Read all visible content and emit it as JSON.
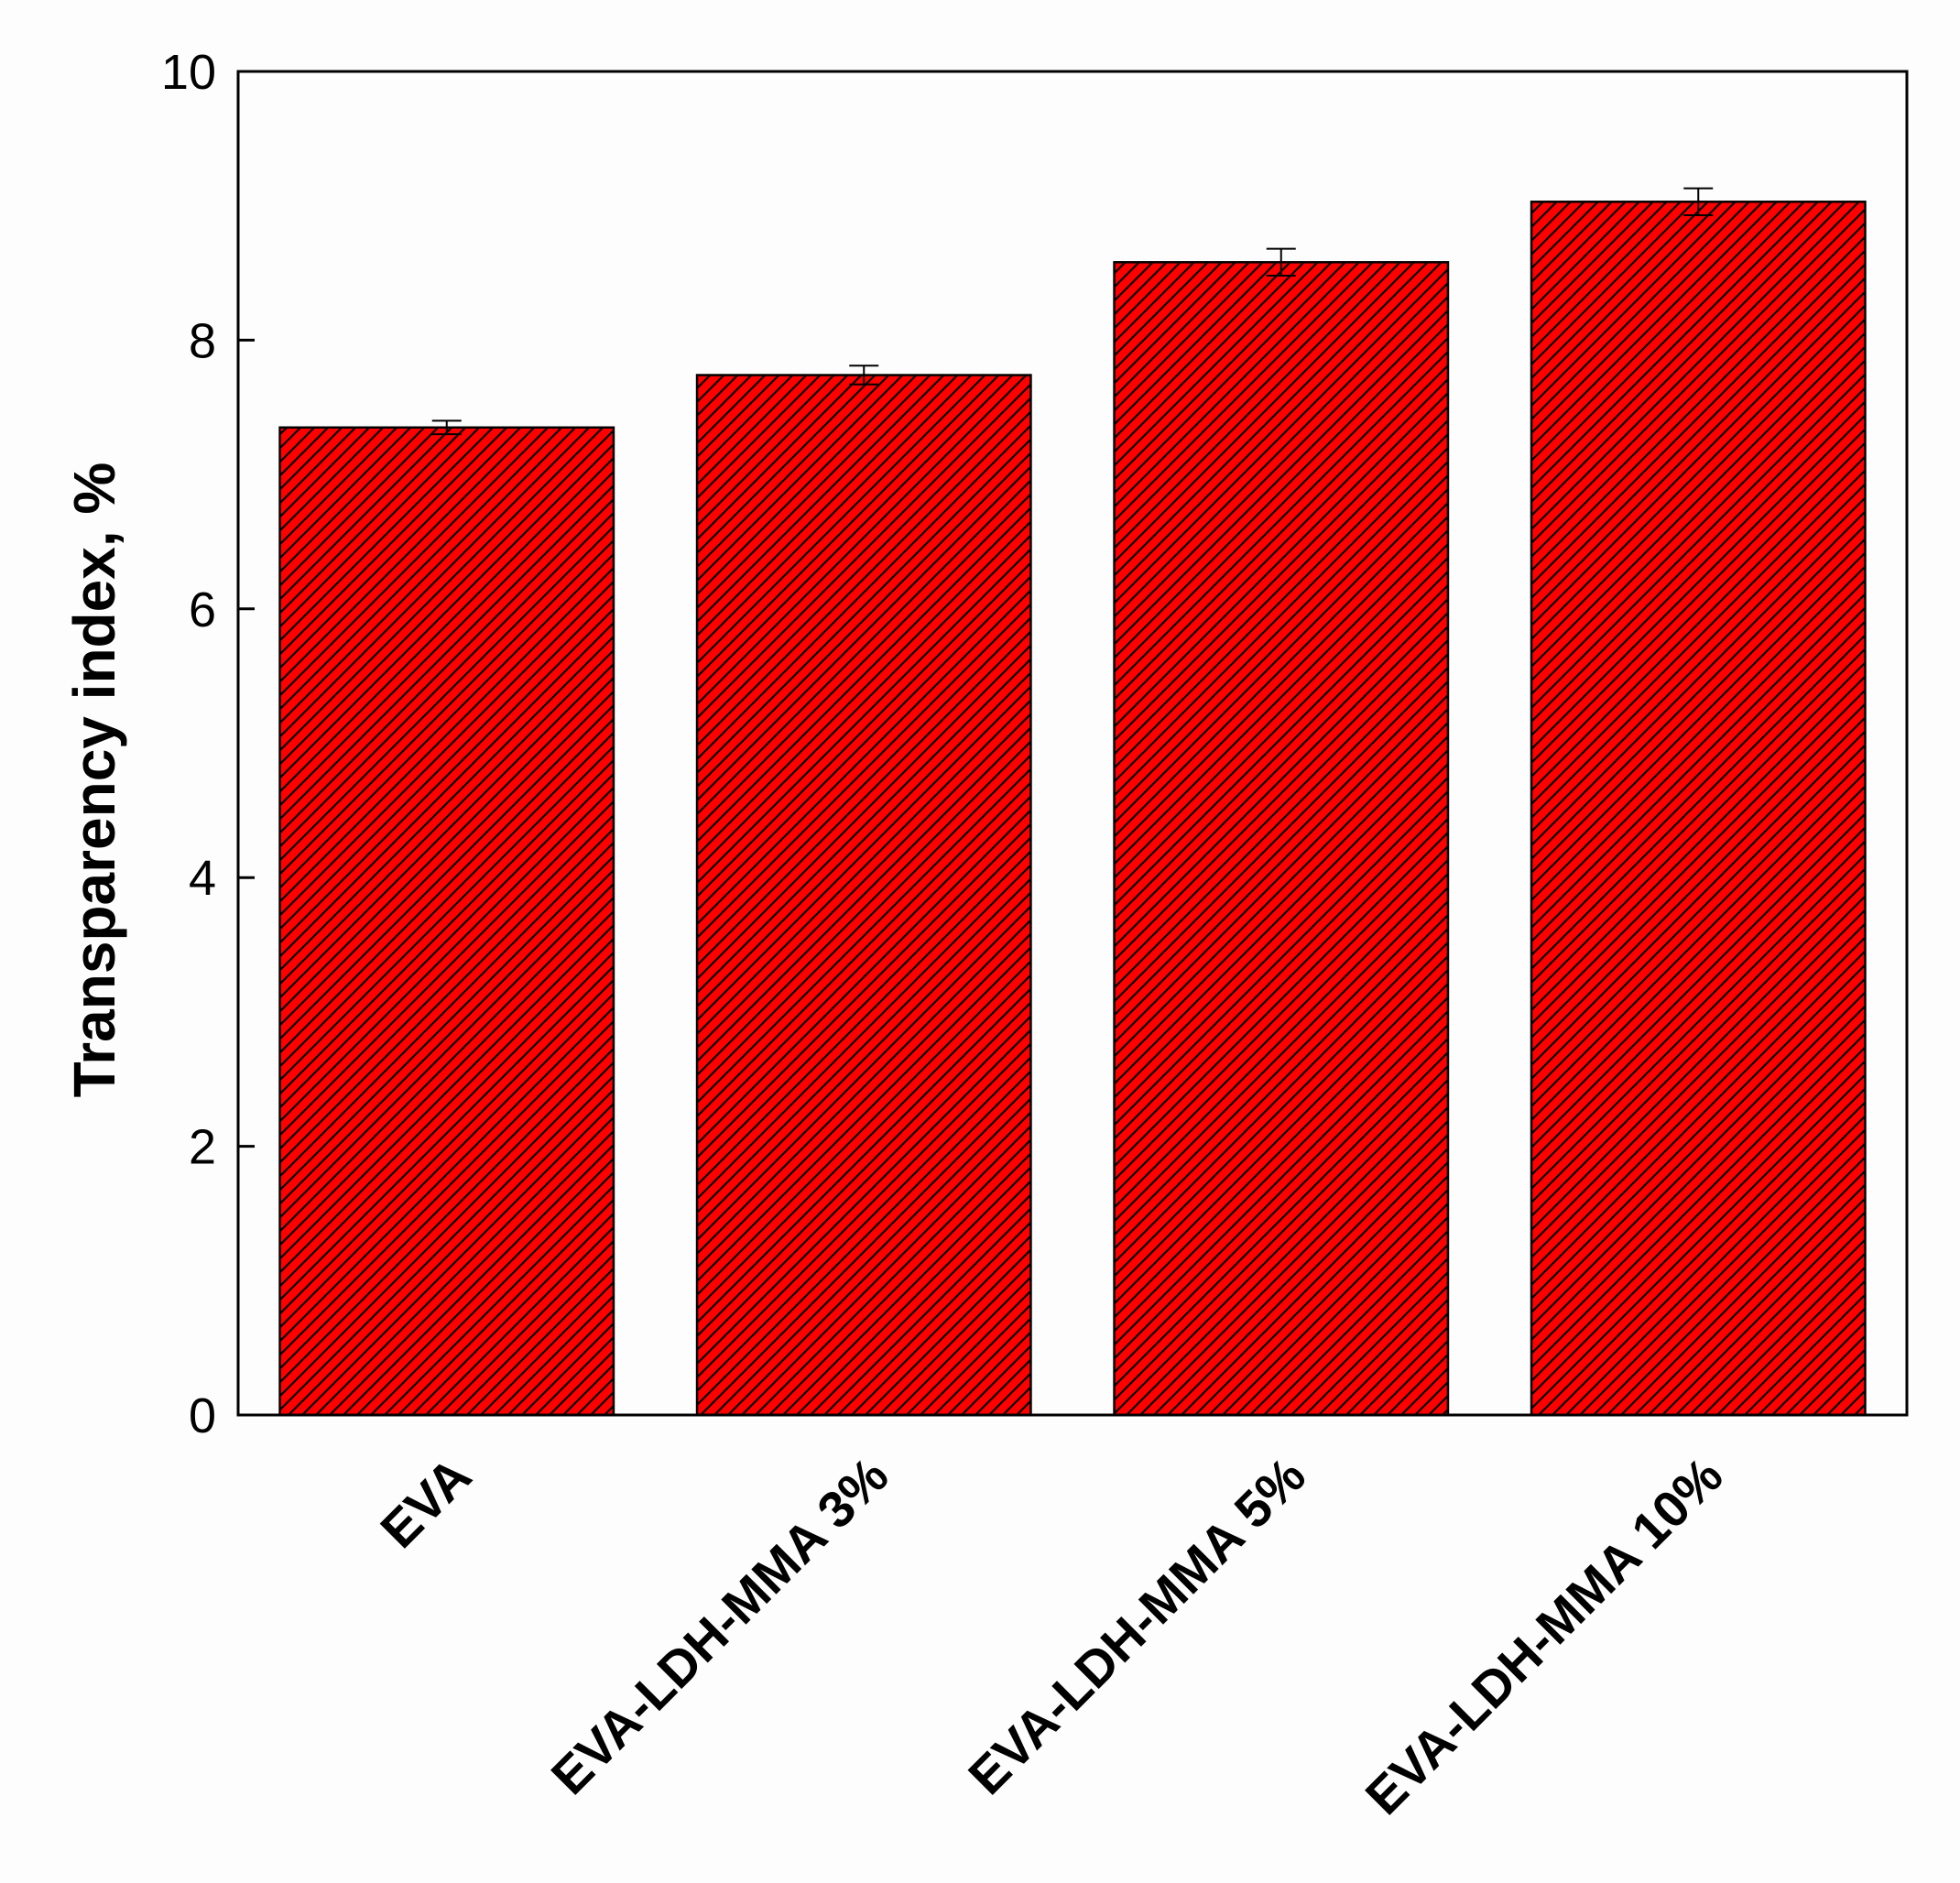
{
  "chart_data": {
    "type": "bar",
    "title": "",
    "xlabel": "",
    "ylabel": "Transparency index, %",
    "ylim": [
      0,
      10
    ],
    "yticks": [
      0,
      2,
      4,
      6,
      8,
      10
    ],
    "ytick_labels": [
      "0",
      "2",
      "4",
      "6",
      "8",
      "10"
    ],
    "categories": [
      "EVA",
      "EVA-LDH-MMA 3%",
      "EVA-LDH-MMA 5%",
      "EVA-LDH-MMA 10%"
    ],
    "values": [
      7.35,
      7.74,
      8.58,
      9.03
    ],
    "errors": [
      0.05,
      0.07,
      0.1,
      0.1
    ],
    "grid": false,
    "legend": "none",
    "bar_color": "#ff0000",
    "hatch_color": "#000000",
    "hatch": "diagonal"
  }
}
